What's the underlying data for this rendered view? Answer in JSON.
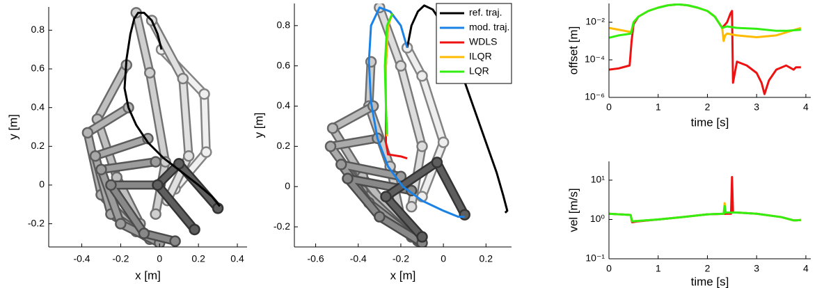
{
  "chart_data": [
    {
      "type": "line",
      "xlabel": "x [m]",
      "ylabel": "y [m]",
      "xlim": [
        -0.57,
        0.45
      ],
      "ylim": [
        -0.32,
        0.92
      ],
      "xticks": [
        -0.4,
        -0.2,
        0,
        0.2,
        0.4
      ],
      "yticks": [
        -0.2,
        0,
        0.2,
        0.4,
        0.6,
        0.8
      ],
      "arm_poses": [
        {
          "color": "#f0f0f0",
          "x": [
            0.08,
            0.24,
            0.23,
            0.01
          ],
          "y": [
            -0.02,
            0.17,
            0.47,
            0.7
          ]
        },
        {
          "color": "#e0e0e0",
          "x": [
            0.04,
            0.15,
            0.12,
            -0.04
          ],
          "y": [
            -0.08,
            0.15,
            0.55,
            0.85
          ]
        },
        {
          "color": "#cfcfcf",
          "x": [
            -0.02,
            0.03,
            -0.05,
            -0.12
          ],
          "y": [
            -0.15,
            0.12,
            0.58,
            0.89
          ]
        },
        {
          "color": "#c0c0c0",
          "x": [
            -0.1,
            -0.22,
            -0.32,
            -0.17
          ],
          "y": [
            -0.2,
            0.04,
            0.34,
            0.62
          ]
        },
        {
          "color": "#b4b4b4",
          "x": [
            -0.12,
            -0.3,
            -0.37,
            -0.16
          ],
          "y": [
            -0.24,
            -0.05,
            0.27,
            0.4
          ]
        },
        {
          "color": "#a8a8a8",
          "x": [
            -0.05,
            -0.25,
            -0.33,
            -0.06
          ],
          "y": [
            -0.28,
            -0.15,
            0.15,
            0.24
          ]
        },
        {
          "color": "#9c9c9c",
          "x": [
            0.0,
            -0.2,
            -0.3,
            -0.02
          ],
          "y": [
            -0.3,
            -0.2,
            0.08,
            0.12
          ]
        },
        {
          "color": "#888888",
          "x": [
            0.08,
            -0.08,
            -0.25,
            0.0
          ],
          "y": [
            -0.29,
            -0.25,
            0.0,
            0.0
          ]
        },
        {
          "color": "#5e5e5e",
          "x": [
            0.18,
            -0.01,
            0.1,
            0.3
          ],
          "y": [
            -0.23,
            0.0,
            0.11,
            -0.12
          ]
        }
      ],
      "series": [
        {
          "color": "#000000",
          "x": [
            0.01,
            -0.01,
            -0.04,
            -0.08,
            -0.11,
            -0.13,
            -0.15,
            -0.17,
            -0.18,
            -0.16,
            -0.12,
            -0.06,
            0.02,
            0.11,
            0.2,
            0.27,
            0.31
          ],
          "values": [
            0.7,
            0.78,
            0.85,
            0.89,
            0.89,
            0.86,
            0.78,
            0.65,
            0.5,
            0.4,
            0.31,
            0.22,
            0.14,
            0.07,
            0.0,
            -0.06,
            -0.11
          ]
        }
      ]
    },
    {
      "type": "line",
      "xlabel": "x [m]",
      "ylabel": "y [m]",
      "xlim": [
        -0.7,
        0.32
      ],
      "ylim": [
        -0.3,
        0.91
      ],
      "xticks": [
        -0.6,
        -0.4,
        -0.2,
        0,
        0.2
      ],
      "yticks": [
        -0.2,
        0,
        0.2,
        0.4,
        0.6,
        0.8
      ],
      "legend": "upper right",
      "arm_poses": [
        {
          "color": "#eeeeee",
          "x": [
            -0.1,
            0.0,
            -0.1,
            -0.17
          ],
          "y": [
            -0.05,
            0.22,
            0.55,
            0.69
          ]
        },
        {
          "color": "#dddddd",
          "x": [
            -0.15,
            -0.1,
            -0.2,
            -0.3
          ],
          "y": [
            -0.1,
            0.2,
            0.6,
            0.89
          ]
        },
        {
          "color": "#cccccc",
          "x": [
            -0.2,
            -0.25,
            -0.35,
            -0.34
          ],
          "y": [
            -0.15,
            0.1,
            0.4,
            0.62
          ]
        },
        {
          "color": "#bbbbbb",
          "x": [
            -0.18,
            -0.38,
            -0.52,
            -0.33
          ],
          "y": [
            -0.22,
            0.05,
            0.29,
            0.4
          ]
        },
        {
          "color": "#aaaaaa",
          "x": [
            -0.15,
            -0.38,
            -0.53,
            -0.31
          ],
          "y": [
            -0.25,
            -0.02,
            0.2,
            0.24
          ]
        },
        {
          "color": "#9a9a9a",
          "x": [
            -0.12,
            -0.35,
            -0.48,
            -0.2
          ],
          "y": [
            -0.27,
            -0.08,
            0.11,
            0.05
          ]
        },
        {
          "color": "#888888",
          "x": [
            -0.1,
            -0.3,
            -0.45,
            -0.15
          ],
          "y": [
            -0.28,
            -0.15,
            0.04,
            -0.02
          ]
        },
        {
          "color": "#5e5e5e",
          "x": [
            -0.1,
            -0.27,
            -0.03,
            0.1
          ],
          "y": [
            -0.25,
            -0.05,
            0.12,
            -0.14
          ]
        }
      ],
      "series": [
        {
          "name": "ref. traj.",
          "color": "#000000",
          "x": [
            -0.17,
            -0.15,
            -0.12,
            -0.09,
            -0.05,
            0.0,
            0.05,
            0.1,
            0.15,
            0.2,
            0.25,
            0.28,
            0.3,
            0.29
          ],
          "values": [
            0.69,
            0.8,
            0.87,
            0.9,
            0.88,
            0.8,
            0.67,
            0.52,
            0.37,
            0.22,
            0.07,
            -0.04,
            -0.12,
            -0.13
          ]
        },
        {
          "name": "mod. traj.",
          "color": "#1a82e6",
          "x": [
            -0.17,
            -0.2,
            -0.25,
            -0.3,
            -0.34,
            -0.35,
            -0.34,
            -0.31,
            -0.26,
            -0.19,
            -0.1,
            0.0,
            0.07,
            0.1
          ],
          "values": [
            0.69,
            0.8,
            0.87,
            0.89,
            0.8,
            0.62,
            0.42,
            0.24,
            0.1,
            0.0,
            -0.07,
            -0.12,
            -0.15,
            -0.15
          ]
        },
        {
          "name": "WDLS",
          "color": "#ee1111",
          "x": [
            -0.24,
            -0.26,
            -0.27,
            -0.27,
            -0.27,
            -0.26,
            -0.2,
            -0.17
          ],
          "values": [
            0.86,
            0.8,
            0.6,
            0.4,
            0.22,
            0.16,
            0.15,
            0.14
          ]
        },
        {
          "name": "ILQR",
          "color": "#ffbb00",
          "x": [
            -0.24,
            -0.26,
            -0.27,
            -0.27,
            -0.265
          ],
          "values": [
            0.86,
            0.8,
            0.6,
            0.4,
            0.25
          ]
        },
        {
          "name": "LQR",
          "color": "#33ee11",
          "x": [
            -0.24,
            -0.265,
            -0.275,
            -0.27,
            -0.265
          ],
          "values": [
            0.86,
            0.8,
            0.6,
            0.4,
            0.26
          ]
        }
      ]
    },
    {
      "type": "line",
      "xlabel": "time [s]",
      "ylabel": "offset [m]",
      "log_y": true,
      "xlim": [
        0,
        4.1
      ],
      "ylim": [
        1e-06,
        0.1
      ],
      "xticks": [
        0,
        1,
        2,
        3,
        4
      ],
      "yticks": [
        {
          "value": 1e-06,
          "label": "10⁻⁶"
        },
        {
          "value": 0.0001,
          "label": "10⁻⁴"
        },
        {
          "value": 0.01,
          "label": "10⁻²"
        }
      ],
      "series": [
        {
          "color": "#ee1111",
          "x": [
            0,
            0.2,
            0.42,
            0.46,
            0.5,
            0.6,
            0.8,
            1.0,
            1.2,
            1.4,
            1.6,
            1.8,
            2.0,
            2.15,
            2.25,
            2.3,
            2.4,
            2.47,
            2.5,
            2.52,
            2.6,
            2.8,
            3.0,
            3.1,
            3.16,
            3.25,
            3.4,
            3.6,
            3.75,
            3.8,
            3.9
          ],
          "values": [
            3e-05,
            3.5e-05,
            5e-05,
            0.001,
            0.008,
            0.02,
            0.04,
            0.06,
            0.08,
            0.09,
            0.08,
            0.06,
            0.04,
            0.02,
            0.008,
            0.005,
            0.01,
            0.03,
            0.04,
            6e-06,
            8e-05,
            5e-05,
            2e-05,
            6e-06,
            1.5e-06,
            8e-06,
            3e-05,
            5e-05,
            3e-05,
            4e-05,
            4e-05
          ]
        },
        {
          "color": "#ffbb00",
          "x": [
            0,
            0.2,
            0.45,
            0.5,
            0.6,
            0.8,
            1.0,
            1.2,
            1.4,
            1.6,
            1.8,
            2.0,
            2.15,
            2.25,
            2.3,
            2.33,
            2.36,
            2.4,
            2.6,
            3.0,
            3.4,
            3.9
          ],
          "values": [
            0.005,
            0.004,
            0.003,
            0.01,
            0.02,
            0.04,
            0.06,
            0.08,
            0.09,
            0.08,
            0.06,
            0.04,
            0.02,
            0.008,
            0.005,
            0.001,
            0.002,
            0.0025,
            0.002,
            0.0016,
            0.002,
            0.005
          ]
        },
        {
          "color": "#33ee11",
          "x": [
            0,
            0.2,
            0.45,
            0.5,
            0.6,
            0.8,
            1.0,
            1.2,
            1.4,
            1.6,
            1.8,
            2.0,
            2.15,
            2.25,
            2.3,
            2.4,
            2.6,
            3.0,
            3.4,
            3.6,
            3.9
          ],
          "values": [
            0.0015,
            0.002,
            0.0025,
            0.01,
            0.02,
            0.04,
            0.06,
            0.08,
            0.09,
            0.08,
            0.06,
            0.04,
            0.02,
            0.008,
            0.005,
            0.006,
            0.005,
            0.0045,
            0.0035,
            0.0035,
            0.004
          ]
        }
      ]
    },
    {
      "type": "line",
      "xlabel": "time [s]",
      "ylabel": "vel [m/s]",
      "log_y": true,
      "xlim": [
        0,
        4.1
      ],
      "ylim": [
        0.1,
        30
      ],
      "xticks": [
        0,
        1,
        2,
        3,
        4
      ],
      "yticks": [
        {
          "value": 0.1,
          "label": "10⁻¹"
        },
        {
          "value": 1,
          "label": "10⁰"
        },
        {
          "value": 10,
          "label": "10¹"
        }
      ],
      "series": [
        {
          "color": "#ee1111",
          "x": [
            0,
            0.44,
            0.47,
            0.6,
            1.0,
            1.5,
            2.0,
            2.4,
            2.48,
            2.5,
            2.52,
            2.6,
            3.0,
            3.5,
            3.75,
            3.8,
            3.9
          ],
          "values": [
            1.4,
            1.3,
            0.85,
            0.9,
            1.0,
            1.15,
            1.35,
            1.4,
            1.4,
            12,
            1.5,
            1.5,
            1.4,
            1.15,
            0.95,
            0.95,
            0.97
          ]
        },
        {
          "color": "#ffbb00",
          "x": [
            0,
            0.44,
            0.47,
            0.6,
            1.0,
            1.5,
            2.0,
            2.33,
            2.35,
            2.37,
            2.6,
            3.0,
            3.5,
            3.75,
            3.8,
            3.9
          ],
          "values": [
            1.4,
            1.3,
            0.9,
            0.92,
            1.0,
            1.15,
            1.35,
            1.4,
            2.6,
            1.5,
            1.5,
            1.4,
            1.15,
            0.95,
            0.95,
            0.97
          ]
        },
        {
          "color": "#33ee11",
          "x": [
            0,
            0.44,
            0.47,
            0.6,
            1.0,
            1.5,
            2.0,
            2.33,
            2.35,
            2.37,
            2.6,
            3.0,
            3.5,
            3.75,
            3.8,
            3.9
          ],
          "values": [
            1.4,
            1.3,
            0.9,
            0.92,
            1.0,
            1.15,
            1.35,
            1.4,
            2.2,
            1.5,
            1.5,
            1.4,
            1.15,
            0.95,
            0.95,
            0.97
          ]
        }
      ]
    }
  ]
}
